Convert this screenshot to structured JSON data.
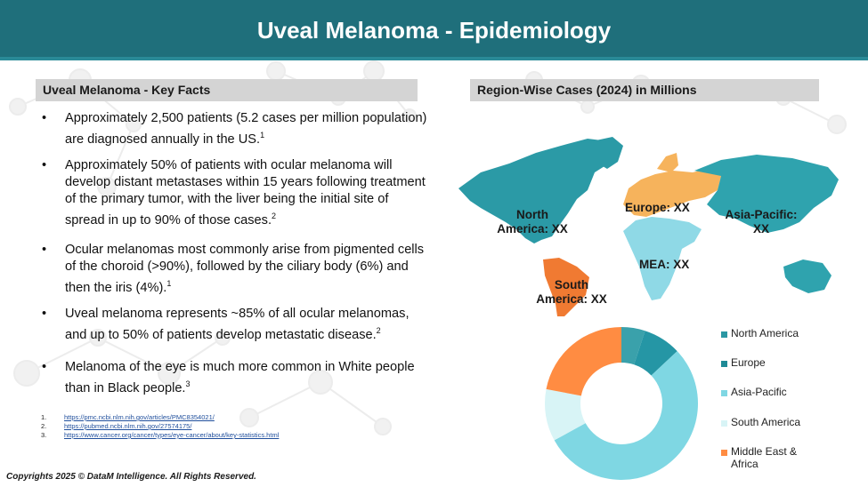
{
  "header": {
    "title": "Uveal Melanoma - Epidemiology"
  },
  "left_section": {
    "title": "Uveal Melanoma - Key Facts",
    "facts": [
      {
        "text": "Approximately 2,500 patients (5.2 cases per million population) are diagnosed annually in the US.",
        "ref": "1"
      },
      {
        "text": "Approximately 50% of patients with ocular melanoma will develop distant metastases within 15 years following treatment of the primary tumor, with the liver being the initial site of spread in up to 90% of those cases.",
        "ref": "2"
      },
      {
        "text": "Ocular melanomas most commonly arise from pigmented cells of the choroid (>90%), followed by the ciliary body (6%) and then the iris (4%).",
        "ref": "1"
      },
      {
        "text": "Uveal melanoma represents ~85% of all ocular melanomas, and up to 50% of patients develop metastatic disease.",
        "ref": "2"
      },
      {
        "text": "Melanoma of the eye is much more common in White people than in Black people.",
        "ref": "3"
      }
    ],
    "references": [
      {
        "num": "1.",
        "url": "https://pmc.ncbi.nlm.nih.gov/articles/PMC8354021/"
      },
      {
        "num": "2.",
        "url": "https://pubmed.ncbi.nlm.nih.gov/27574175/"
      },
      {
        "num": "3.",
        "url": "https://www.cancer.org/cancer/types/eye-cancer/about/key-statistics.html"
      }
    ]
  },
  "right_section": {
    "title": "Region-Wise Cases (2024) in Millions",
    "map_labels": {
      "north_america": "North America: XX",
      "europe": "Europe: XX",
      "asia_pacific": "Asia-Pacific: XX",
      "mea": "MEA: XX",
      "south_america": "South America: XX"
    },
    "region_colors": {
      "north_america": "#2b9aa6",
      "europe": "#f6b35c",
      "asia_pacific": "#2fa3ae",
      "mea": "#8fd9e6",
      "south_america": "#f07a32"
    }
  },
  "chart_data": {
    "type": "pie",
    "donut": true,
    "categories": [
      "North America",
      "Europe",
      "Asia-Pacific",
      "South America",
      "Middle East & Africa"
    ],
    "segments": [
      {
        "color": "#3aa1ab",
        "value": 5
      },
      {
        "color": "#2596a5",
        "value": 8
      },
      {
        "color": "#7fd7e3",
        "value": 54
      },
      {
        "color": "#d8f4f6",
        "value": 11
      },
      {
        "color": "#ff8c42",
        "value": 22
      }
    ],
    "legend": [
      {
        "label": "North America",
        "color": "#2b97a3"
      },
      {
        "label": "Europe",
        "color": "#1e8a96"
      },
      {
        "label": "Asia-Pacific",
        "color": "#7fd7e3"
      },
      {
        "label": "South America",
        "color": "#d8f4f6"
      },
      {
        "label": "Middle East & Africa",
        "color": "#ff8c42"
      }
    ],
    "legend_position": "right"
  },
  "footer": {
    "copyright": "Copyrights 2025 © DataM Intelligence. All Rights Reserved."
  }
}
